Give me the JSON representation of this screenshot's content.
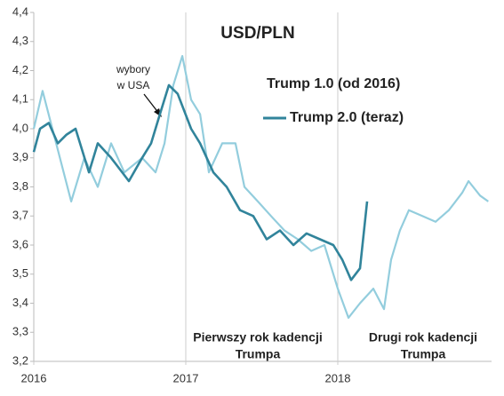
{
  "chart_data": {
    "type": "line",
    "title": "USD/PLN",
    "xlim": [
      2016,
      2019
    ],
    "xticks": [
      2016,
      2017,
      2018
    ],
    "ylim": [
      3.2,
      4.4
    ],
    "yticks": [
      {
        "value": 3.2,
        "label": "3,2"
      },
      {
        "value": 3.3,
        "label": "3,3"
      },
      {
        "value": 3.4,
        "label": "3,4"
      },
      {
        "value": 3.5,
        "label": "3,5"
      },
      {
        "value": 3.6,
        "label": "3,6"
      },
      {
        "value": 3.7,
        "label": "3,7"
      },
      {
        "value": 3.8,
        "label": "3,8"
      },
      {
        "value": 3.9,
        "label": "3,9"
      },
      {
        "value": 4.0,
        "label": "4,0"
      },
      {
        "value": 4.1,
        "label": "4,1"
      },
      {
        "value": 4.2,
        "label": "4,2"
      },
      {
        "value": 4.3,
        "label": "4,3"
      },
      {
        "value": 4.4,
        "label": "4,4"
      }
    ],
    "series": [
      {
        "name": "Trump 1.0 (od 2016)",
        "color": "#93cddd",
        "x": [
          2016.0,
          2016.058,
          2016.246,
          2016.333,
          2016.421,
          2016.509,
          2016.596,
          2016.713,
          2016.801,
          2016.86,
          2016.918,
          2016.977,
          2017.035,
          2017.094,
          2017.152,
          2017.24,
          2017.327,
          2017.386,
          2017.474,
          2017.561,
          2017.649,
          2017.737,
          2017.825,
          2017.912,
          2018.0,
          2018.07,
          2018.146,
          2018.234,
          2018.304,
          2018.351,
          2018.409,
          2018.468,
          2018.556,
          2018.643,
          2018.731,
          2018.819,
          2018.86,
          2018.936,
          2018.99
        ],
        "values": [
          4.0,
          4.13,
          3.75,
          3.9,
          3.8,
          3.95,
          3.85,
          3.9,
          3.85,
          3.95,
          4.15,
          4.25,
          4.1,
          4.05,
          3.85,
          3.95,
          3.95,
          3.8,
          3.75,
          3.7,
          3.65,
          3.62,
          3.58,
          3.6,
          3.45,
          3.35,
          3.4,
          3.45,
          3.38,
          3.55,
          3.65,
          3.72,
          3.7,
          3.68,
          3.72,
          3.78,
          3.82,
          3.77,
          3.75
        ]
      },
      {
        "name": "Trump 2.0 (teraz)",
        "color": "#31849b",
        "x": [
          2016.0,
          2016.041,
          2016.099,
          2016.158,
          2016.216,
          2016.275,
          2016.363,
          2016.421,
          2016.509,
          2016.626,
          2016.713,
          2016.772,
          2016.83,
          2016.889,
          2016.947,
          2017.035,
          2017.094,
          2017.181,
          2017.269,
          2017.357,
          2017.444,
          2017.532,
          2017.62,
          2017.708,
          2017.795,
          2017.883,
          2017.971,
          2018.029,
          2018.088,
          2018.146,
          2018.193
        ],
        "values": [
          3.92,
          4.0,
          4.02,
          3.95,
          3.98,
          4.0,
          3.85,
          3.95,
          3.9,
          3.82,
          3.9,
          3.95,
          4.05,
          4.15,
          4.12,
          4.0,
          3.95,
          3.85,
          3.8,
          3.72,
          3.7,
          3.62,
          3.65,
          3.6,
          3.64,
          3.62,
          3.6,
          3.55,
          3.48,
          3.52,
          3.75
        ]
      }
    ],
    "annotations": [
      {
        "lines": [
          "wybory",
          "w USA"
        ],
        "color": "#222222"
      },
      {
        "lines": [
          "Pierwszy rok kadencji",
          "Trumpa"
        ],
        "color": "#000000"
      },
      {
        "lines": [
          "Drugi rok kadencji",
          "Trumpa"
        ],
        "color": "#ff0000"
      }
    ]
  }
}
